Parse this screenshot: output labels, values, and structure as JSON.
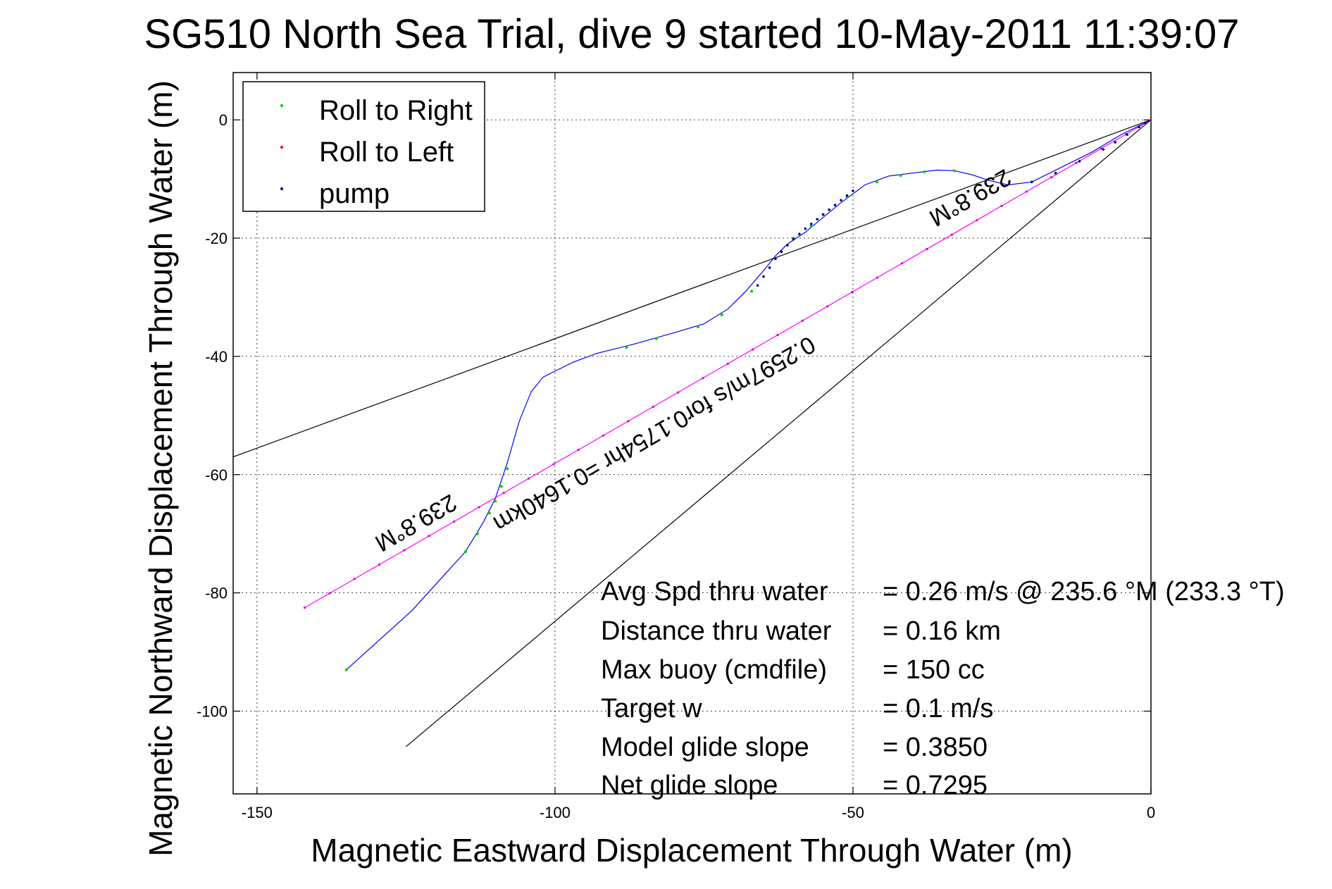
{
  "chart_data": {
    "type": "line",
    "title": "SG510 North Sea Trial, dive 9 started 10-May-2011 11:39:07",
    "xlabel": "Magnetic Eastward Displacement Through Water (m)",
    "ylabel": "Magnetic Northward Displacement Through Water (m)",
    "xlim": [
      -154,
      0
    ],
    "ylim": [
      -114,
      8
    ],
    "xticks": [
      -150,
      -100,
      -50,
      0
    ],
    "yticks": [
      0,
      -20,
      -40,
      -60,
      -80,
      -100
    ],
    "xtick_labels": [
      "-150",
      "-100",
      "-50",
      "0"
    ],
    "ytick_labels": [
      "0",
      "-20",
      "-40",
      "-60",
      "-80",
      "-100"
    ],
    "grid": true,
    "legend_position": "top-left",
    "legend": [
      {
        "label": "Roll to Right",
        "color": "#00cc00"
      },
      {
        "label": "Roll to Left",
        "color": "#ff0000"
      },
      {
        "label": "pump",
        "color": "#000080"
      }
    ],
    "series": [
      {
        "role": "track",
        "color": "#0000ff",
        "x": [
          -135,
          -124,
          -115,
          -112,
          -110,
          -108,
          -106,
          -104,
          -102,
          -100,
          -97,
          -93,
          -87,
          -80,
          -75,
          -71,
          -68,
          -65,
          -63,
          -61,
          -58,
          -55,
          -52,
          -48,
          -44,
          -40,
          -36,
          -33,
          -30,
          -27,
          -24,
          -20,
          -15,
          -10,
          -5,
          0
        ],
        "y": [
          -93,
          -83,
          -73,
          -68,
          -64,
          -58,
          -51,
          -46,
          -43.5,
          -42.5,
          -41,
          -39.5,
          -38,
          -36,
          -34.5,
          -32,
          -29,
          -25.5,
          -23,
          -21,
          -19,
          -16.5,
          -14,
          -11,
          -9.5,
          -9,
          -8.5,
          -8.6,
          -9.3,
          -10.3,
          -11,
          -10.5,
          -8,
          -5.5,
          -2.5,
          0
        ]
      },
      {
        "role": "net-displacement",
        "color": "#ff00ff",
        "x": [
          -142,
          0
        ],
        "y": [
          -82.5,
          0
        ]
      },
      {
        "role": "bound-upper",
        "color": "#000000",
        "x": [
          -154,
          0
        ],
        "y": [
          -57,
          0
        ]
      },
      {
        "role": "bound-lower",
        "color": "#000000",
        "x": [
          -125,
          0
        ],
        "y": [
          -106,
          0
        ]
      }
    ],
    "marker_points": {
      "green": {
        "x": [
          -115,
          -113,
          -111,
          -110,
          -109,
          -108,
          -135,
          -72,
          -76,
          -83,
          -88,
          -67,
          -60,
          -57,
          -55,
          -51,
          -46,
          -42,
          -38,
          -33
        ],
        "y": [
          -73,
          -70,
          -66.5,
          -64.5,
          -62,
          -59,
          -93,
          -33,
          -35,
          -37,
          -38.5,
          -29,
          -20,
          -18,
          -16,
          -13,
          -10.5,
          -9.4,
          -8.8,
          -8.6
        ]
      },
      "navy": {
        "x": [
          -66,
          -65,
          -64,
          -63,
          -62,
          -61,
          -60,
          -59,
          -58,
          -57,
          -56,
          -55,
          -54,
          -53,
          -52,
          -51,
          -50,
          -20,
          -16,
          -12,
          -8,
          -6,
          -4,
          -2,
          -1
        ],
        "y": [
          -28,
          -26.5,
          -25,
          -23.5,
          -22.3,
          -21.2,
          -20.2,
          -19.3,
          -18.4,
          -17.6,
          -16.8,
          -16,
          -15.2,
          -14.4,
          -13.6,
          -12.8,
          -12,
          -10.5,
          -9,
          -7,
          -5,
          -3.8,
          -2.5,
          -1.2,
          -0.5
        ]
      }
    },
    "heading_labels": [
      {
        "text": "239.8°M",
        "x": -124,
        "y": -67,
        "angle": 150
      },
      {
        "text": "239.8°M",
        "x": -31,
        "y": -12,
        "angle": 150
      }
    ],
    "segment_label": {
      "text": "0.2597m/s for0.1754hr =0.1640km",
      "x": -84,
      "y": -52,
      "angle": 150
    },
    "annotations": [
      {
        "label": "Avg Spd thru water",
        "value": "=  0.26 m/s @ 235.6 °M (233.3 °T)"
      },
      {
        "label": "Distance thru water",
        "value": "=  0.16 km"
      },
      {
        "label": "Max buoy (cmdfile)",
        "value": "= 150 cc"
      },
      {
        "label": "Target w",
        "value": "= 0.1 m/s"
      },
      {
        "label": "Model glide slope",
        "value": "= 0.3850"
      },
      {
        "label": "Net glide slope",
        "value": "= 0.7295"
      }
    ]
  }
}
